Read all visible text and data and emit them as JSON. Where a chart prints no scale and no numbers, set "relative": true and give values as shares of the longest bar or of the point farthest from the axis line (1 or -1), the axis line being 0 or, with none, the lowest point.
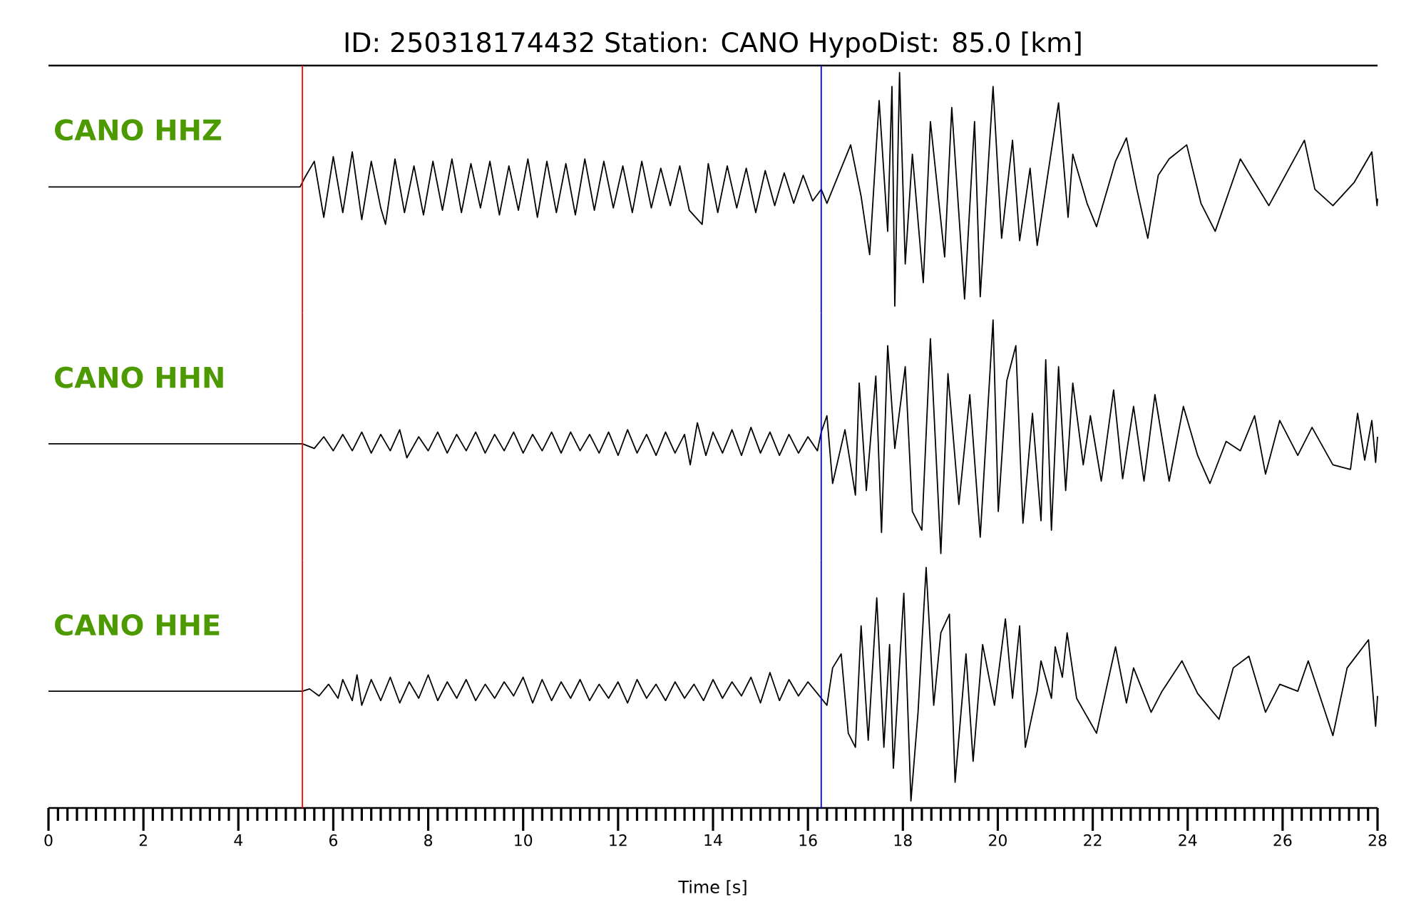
{
  "chart_data": [
    {
      "type": "line",
      "title": "ID: 250318174432   Station: CANO   HypoDist:    85.0 [km]",
      "relative": true,
      "xlim": [
        0,
        28
      ],
      "ref_lines": [
        {
          "axis": "x",
          "value": 5.35,
          "color": "#ff0000"
        },
        {
          "axis": "x",
          "value": 16.28,
          "color": "#0000ff"
        }
      ],
      "series": [
        {
          "name": "CANO HHZ",
          "color": "#000000",
          "x": [
            0,
            5.3,
            5.4,
            5.6,
            5.8,
            6.0,
            6.2,
            6.4,
            6.6,
            6.8,
            7.0,
            7.1,
            7.3,
            7.5,
            7.7,
            7.9,
            8.1,
            8.3,
            8.5,
            8.7,
            8.9,
            9.1,
            9.3,
            9.5,
            9.7,
            9.9,
            10.1,
            10.3,
            10.5,
            10.7,
            10.9,
            11.1,
            11.3,
            11.5,
            11.7,
            11.9,
            12.1,
            12.3,
            12.5,
            12.7,
            12.9,
            13.1,
            13.3,
            13.5,
            13.77,
            13.9,
            14.1,
            14.3,
            14.5,
            14.7,
            14.9,
            15.1,
            15.3,
            15.5,
            15.7,
            15.9,
            16.1,
            16.28,
            16.4,
            16.9,
            17.12,
            17.3,
            17.5,
            17.68,
            17.77,
            17.83,
            17.93,
            18.05,
            18.2,
            18.43,
            18.58,
            18.88,
            19.03,
            19.3,
            19.51,
            19.63,
            19.9,
            20.08,
            20.31,
            20.46,
            20.68,
            20.83,
            21.28,
            21.48,
            21.58,
            21.88,
            22.08,
            22.48,
            22.71,
            22.93,
            23.16,
            23.38,
            23.61,
            23.98,
            24.28,
            24.58,
            25.11,
            25.41,
            25.71,
            26.46,
            26.68,
            27.06,
            27.51,
            27.88,
            27.99,
            28
          ],
          "values": [
            0.51,
            0.51,
            0.55,
            0.62,
            0.38,
            0.64,
            0.4,
            0.66,
            0.37,
            0.62,
            0.42,
            0.35,
            0.63,
            0.4,
            0.6,
            0.39,
            0.62,
            0.41,
            0.63,
            0.4,
            0.61,
            0.42,
            0.62,
            0.39,
            0.6,
            0.41,
            0.63,
            0.38,
            0.62,
            0.4,
            0.61,
            0.39,
            0.63,
            0.41,
            0.62,
            0.42,
            0.6,
            0.4,
            0.62,
            0.42,
            0.59,
            0.43,
            0.6,
            0.41,
            0.35,
            0.61,
            0.4,
            0.6,
            0.42,
            0.59,
            0.4,
            0.58,
            0.43,
            0.57,
            0.44,
            0.56,
            0.45,
            0.5,
            0.44,
            0.69,
            0.47,
            0.22,
            0.88,
            0.32,
            0.94,
            0.0,
            1.0,
            0.18,
            0.65,
            0.1,
            0.79,
            0.21,
            0.85,
            0.03,
            0.79,
            0.04,
            0.94,
            0.29,
            0.71,
            0.28,
            0.59,
            0.26,
            0.87,
            0.38,
            0.65,
            0.44,
            0.34,
            0.62,
            0.72,
            0.5,
            0.29,
            0.56,
            0.63,
            0.69,
            0.44,
            0.32,
            0.63,
            0.53,
            0.43,
            0.71,
            0.5,
            0.43,
            0.53,
            0.66,
            0.43,
            0.46
          ]
        }
      ]
    },
    {
      "type": "line",
      "relative": true,
      "xlim": [
        0,
        28
      ],
      "ref_lines": [
        {
          "axis": "x",
          "value": 5.35,
          "color": "#ff0000"
        },
        {
          "axis": "x",
          "value": 16.28,
          "color": "#0000ff"
        }
      ],
      "series": [
        {
          "name": "CANO HHN",
          "color": "#000000",
          "x": [
            0,
            5.35,
            5.6,
            5.8,
            6.0,
            6.2,
            6.4,
            6.6,
            6.8,
            7.0,
            7.2,
            7.4,
            7.55,
            7.8,
            8.0,
            8.2,
            8.4,
            8.6,
            8.8,
            9.0,
            9.2,
            9.4,
            9.6,
            9.8,
            10.0,
            10.2,
            10.4,
            10.6,
            10.8,
            11.0,
            11.2,
            11.4,
            11.6,
            11.8,
            12.0,
            12.2,
            12.4,
            12.6,
            12.8,
            13.0,
            13.2,
            13.4,
            13.52,
            13.67,
            13.85,
            14.0,
            14.2,
            14.4,
            14.6,
            14.8,
            15.0,
            15.2,
            15.4,
            15.6,
            15.8,
            16.0,
            16.2,
            16.28,
            16.4,
            16.52,
            16.78,
            17.0,
            17.08,
            17.23,
            17.43,
            17.55,
            17.68,
            17.83,
            18.05,
            18.2,
            18.4,
            18.58,
            18.8,
            18.95,
            19.18,
            19.41,
            19.63,
            19.9,
            20.01,
            20.19,
            20.38,
            20.53,
            20.73,
            20.91,
            21.01,
            21.13,
            21.28,
            21.43,
            21.58,
            21.8,
            21.95,
            22.18,
            22.44,
            22.63,
            22.86,
            23.08,
            23.31,
            23.61,
            23.91,
            24.21,
            24.47,
            24.81,
            25.11,
            25.41,
            25.64,
            25.94,
            26.32,
            26.62,
            27.06,
            27.43,
            27.58,
            27.73,
            27.88,
            27.96,
            28
          ],
          "values": [
            0.47,
            0.47,
            0.45,
            0.5,
            0.44,
            0.51,
            0.44,
            0.52,
            0.43,
            0.51,
            0.44,
            0.53,
            0.41,
            0.5,
            0.44,
            0.52,
            0.43,
            0.51,
            0.44,
            0.52,
            0.43,
            0.51,
            0.44,
            0.52,
            0.43,
            0.51,
            0.44,
            0.52,
            0.43,
            0.52,
            0.44,
            0.51,
            0.43,
            0.52,
            0.42,
            0.53,
            0.43,
            0.51,
            0.42,
            0.52,
            0.43,
            0.51,
            0.38,
            0.56,
            0.42,
            0.52,
            0.43,
            0.53,
            0.42,
            0.54,
            0.43,
            0.52,
            0.42,
            0.51,
            0.43,
            0.5,
            0.44,
            0.52,
            0.59,
            0.3,
            0.53,
            0.25,
            0.73,
            0.27,
            0.76,
            0.09,
            0.89,
            0.45,
            0.8,
            0.18,
            0.1,
            0.92,
            0.0,
            0.77,
            0.21,
            0.68,
            0.07,
            1.0,
            0.18,
            0.74,
            0.89,
            0.13,
            0.6,
            0.14,
            0.83,
            0.1,
            0.8,
            0.27,
            0.73,
            0.38,
            0.59,
            0.31,
            0.7,
            0.32,
            0.63,
            0.31,
            0.68,
            0.31,
            0.63,
            0.42,
            0.3,
            0.48,
            0.44,
            0.59,
            0.34,
            0.57,
            0.42,
            0.54,
            0.38,
            0.36,
            0.6,
            0.4,
            0.57,
            0.39,
            0.5
          ]
        }
      ]
    },
    {
      "type": "line",
      "relative": true,
      "xlim": [
        0,
        28
      ],
      "xlabel": "Time [s]",
      "xticks": [
        0,
        2,
        4,
        6,
        8,
        10,
        12,
        14,
        16,
        18,
        20,
        22,
        24,
        26,
        28,
        {
          "value": 0.2,
          "label": null
        },
        {
          "value": 0.4,
          "label": null
        },
        {
          "value": 0.6,
          "label": null
        },
        {
          "value": 0.8,
          "label": null
        },
        {
          "value": 1.0,
          "label": null
        },
        {
          "value": 1.2,
          "label": null
        },
        {
          "value": 1.4,
          "label": null
        },
        {
          "value": 1.6,
          "label": null
        },
        {
          "value": 1.8,
          "label": null
        },
        {
          "value": 2.2,
          "label": null
        },
        {
          "value": 2.4,
          "label": null
        },
        {
          "value": 2.6,
          "label": null
        },
        {
          "value": 2.8,
          "label": null
        },
        {
          "value": 3.0,
          "label": null
        },
        {
          "value": 3.2,
          "label": null
        },
        {
          "value": 3.4,
          "label": null
        },
        {
          "value": 3.6,
          "label": null
        },
        {
          "value": 3.8,
          "label": null
        },
        {
          "value": 4.2,
          "label": null
        },
        {
          "value": 4.4,
          "label": null
        },
        {
          "value": 4.6,
          "label": null
        },
        {
          "value": 4.8,
          "label": null
        },
        {
          "value": 5.0,
          "label": null
        },
        {
          "value": 5.2,
          "label": null
        },
        {
          "value": 5.4,
          "label": null
        },
        {
          "value": 5.6,
          "label": null
        },
        {
          "value": 5.8,
          "label": null
        },
        {
          "value": 6.2,
          "label": null
        },
        {
          "value": 6.4,
          "label": null
        },
        {
          "value": 6.6,
          "label": null
        },
        {
          "value": 6.8,
          "label": null
        },
        {
          "value": 7.0,
          "label": null
        },
        {
          "value": 7.2,
          "label": null
        },
        {
          "value": 7.4,
          "label": null
        },
        {
          "value": 7.6,
          "label": null
        },
        {
          "value": 7.8,
          "label": null
        },
        {
          "value": 8.2,
          "label": null
        },
        {
          "value": 8.4,
          "label": null
        },
        {
          "value": 8.6,
          "label": null
        },
        {
          "value": 8.8,
          "label": null
        },
        {
          "value": 9.0,
          "label": null
        },
        {
          "value": 9.2,
          "label": null
        },
        {
          "value": 9.4,
          "label": null
        },
        {
          "value": 9.6,
          "label": null
        },
        {
          "value": 9.8,
          "label": null
        },
        {
          "value": 10.2,
          "label": null
        },
        {
          "value": 10.4,
          "label": null
        },
        {
          "value": 10.6,
          "label": null
        },
        {
          "value": 10.8,
          "label": null
        },
        {
          "value": 11.0,
          "label": null
        },
        {
          "value": 11.2,
          "label": null
        },
        {
          "value": 11.4,
          "label": null
        },
        {
          "value": 11.6,
          "label": null
        },
        {
          "value": 11.8,
          "label": null
        },
        {
          "value": 12.2,
          "label": null
        },
        {
          "value": 12.4,
          "label": null
        },
        {
          "value": 12.6,
          "label": null
        },
        {
          "value": 12.8,
          "label": null
        },
        {
          "value": 13.0,
          "label": null
        },
        {
          "value": 13.2,
          "label": null
        },
        {
          "value": 13.4,
          "label": null
        },
        {
          "value": 13.6,
          "label": null
        },
        {
          "value": 13.8,
          "label": null
        },
        {
          "value": 14.2,
          "label": null
        },
        {
          "value": 14.4,
          "label": null
        },
        {
          "value": 14.6,
          "label": null
        },
        {
          "value": 14.8,
          "label": null
        },
        {
          "value": 15.0,
          "label": null
        },
        {
          "value": 15.2,
          "label": null
        },
        {
          "value": 15.4,
          "label": null
        },
        {
          "value": 15.6,
          "label": null
        },
        {
          "value": 15.8,
          "label": null
        },
        {
          "value": 16.2,
          "label": null
        },
        {
          "value": 16.4,
          "label": null
        },
        {
          "value": 16.6,
          "label": null
        },
        {
          "value": 16.8,
          "label": null
        },
        {
          "value": 17.0,
          "label": null
        },
        {
          "value": 17.2,
          "label": null
        },
        {
          "value": 17.4,
          "label": null
        },
        {
          "value": 17.6,
          "label": null
        },
        {
          "value": 17.8,
          "label": null
        },
        {
          "value": 18.2,
          "label": null
        },
        {
          "value": 18.4,
          "label": null
        },
        {
          "value": 18.6,
          "label": null
        },
        {
          "value": 18.8,
          "label": null
        },
        {
          "value": 19.0,
          "label": null
        },
        {
          "value": 19.2,
          "label": null
        },
        {
          "value": 19.4,
          "label": null
        },
        {
          "value": 19.6,
          "label": null
        },
        {
          "value": 19.8,
          "label": null
        },
        {
          "value": 20.2,
          "label": null
        },
        {
          "value": 20.4,
          "label": null
        },
        {
          "value": 20.6,
          "label": null
        },
        {
          "value": 20.8,
          "label": null
        },
        {
          "value": 21.0,
          "label": null
        },
        {
          "value": 21.2,
          "label": null
        },
        {
          "value": 21.4,
          "label": null
        },
        {
          "value": 21.6,
          "label": null
        },
        {
          "value": 21.8,
          "label": null
        },
        {
          "value": 22.2,
          "label": null
        },
        {
          "value": 22.4,
          "label": null
        },
        {
          "value": 22.6,
          "label": null
        },
        {
          "value": 22.8,
          "label": null
        },
        {
          "value": 23.0,
          "label": null
        },
        {
          "value": 23.2,
          "label": null
        },
        {
          "value": 23.4,
          "label": null
        },
        {
          "value": 23.6,
          "label": null
        },
        {
          "value": 23.8,
          "label": null
        },
        {
          "value": 24.2,
          "label": null
        },
        {
          "value": 24.4,
          "label": null
        },
        {
          "value": 24.6,
          "label": null
        },
        {
          "value": 24.8,
          "label": null
        },
        {
          "value": 25.0,
          "label": null
        },
        {
          "value": 25.2,
          "label": null
        },
        {
          "value": 25.4,
          "label": null
        },
        {
          "value": 25.6,
          "label": null
        },
        {
          "value": 25.8,
          "label": null
        },
        {
          "value": 26.2,
          "label": null
        },
        {
          "value": 26.4,
          "label": null
        },
        {
          "value": 26.6,
          "label": null
        },
        {
          "value": 26.8,
          "label": null
        },
        {
          "value": 27.0,
          "label": null
        },
        {
          "value": 27.2,
          "label": null
        },
        {
          "value": 27.4,
          "label": null
        },
        {
          "value": 27.6,
          "label": null
        },
        {
          "value": 27.8,
          "label": null
        }
      ],
      "ref_lines": [
        {
          "axis": "x",
          "value": 5.35,
          "color": "#ff0000"
        },
        {
          "axis": "x",
          "value": 16.28,
          "color": "#0000ff"
        }
      ],
      "series": [
        {
          "name": "CANO HHE",
          "color": "#000000",
          "x": [
            0,
            5.35,
            5.5,
            5.7,
            5.9,
            6.1,
            6.2,
            6.4,
            6.5,
            6.6,
            6.8,
            7.0,
            7.2,
            7.4,
            7.6,
            7.8,
            8.0,
            8.2,
            8.4,
            8.6,
            8.8,
            9.0,
            9.2,
            9.4,
            9.6,
            9.8,
            10.0,
            10.2,
            10.4,
            10.6,
            10.8,
            11.0,
            11.2,
            11.4,
            11.6,
            11.8,
            12.0,
            12.2,
            12.4,
            12.6,
            12.8,
            13.0,
            13.2,
            13.4,
            13.6,
            13.8,
            14.0,
            14.2,
            14.4,
            14.6,
            14.8,
            15.0,
            15.2,
            15.4,
            15.6,
            15.8,
            16.0,
            16.2,
            16.28,
            16.4,
            16.52,
            16.7,
            16.85,
            17.0,
            17.12,
            17.27,
            17.45,
            17.6,
            17.72,
            17.8,
            18.02,
            18.17,
            18.32,
            18.49,
            18.65,
            18.8,
            18.98,
            19.1,
            19.33,
            19.48,
            19.68,
            19.93,
            20.16,
            20.31,
            20.46,
            20.58,
            20.83,
            20.91,
            21.13,
            21.21,
            21.36,
            21.46,
            21.66,
            22.08,
            22.48,
            22.71,
            22.86,
            23.23,
            23.46,
            23.88,
            24.21,
            24.66,
            24.96,
            25.29,
            25.64,
            25.94,
            26.32,
            26.54,
            27.06,
            27.36,
            27.81,
            27.96,
            28
          ],
          "values": [
            0.47,
            0.47,
            0.48,
            0.45,
            0.5,
            0.44,
            0.52,
            0.43,
            0.54,
            0.41,
            0.52,
            0.43,
            0.53,
            0.42,
            0.51,
            0.44,
            0.54,
            0.43,
            0.51,
            0.44,
            0.52,
            0.43,
            0.5,
            0.44,
            0.51,
            0.45,
            0.53,
            0.42,
            0.52,
            0.43,
            0.51,
            0.44,
            0.52,
            0.43,
            0.5,
            0.44,
            0.51,
            0.42,
            0.52,
            0.44,
            0.5,
            0.43,
            0.51,
            0.44,
            0.5,
            0.43,
            0.52,
            0.44,
            0.51,
            0.45,
            0.53,
            0.42,
            0.55,
            0.43,
            0.52,
            0.45,
            0.51,
            0.46,
            0.44,
            0.41,
            0.57,
            0.63,
            0.29,
            0.23,
            0.75,
            0.26,
            0.87,
            0.23,
            0.67,
            0.14,
            0.89,
            0.0,
            0.38,
            1.0,
            0.41,
            0.72,
            0.8,
            0.08,
            0.63,
            0.17,
            0.67,
            0.41,
            0.78,
            0.44,
            0.75,
            0.23,
            0.47,
            0.6,
            0.44,
            0.66,
            0.53,
            0.72,
            0.44,
            0.29,
            0.66,
            0.42,
            0.57,
            0.38,
            0.47,
            0.6,
            0.46,
            0.35,
            0.57,
            0.62,
            0.38,
            0.5,
            0.47,
            0.6,
            0.28,
            0.57,
            0.69,
            0.32,
            0.45
          ]
        }
      ]
    }
  ]
}
